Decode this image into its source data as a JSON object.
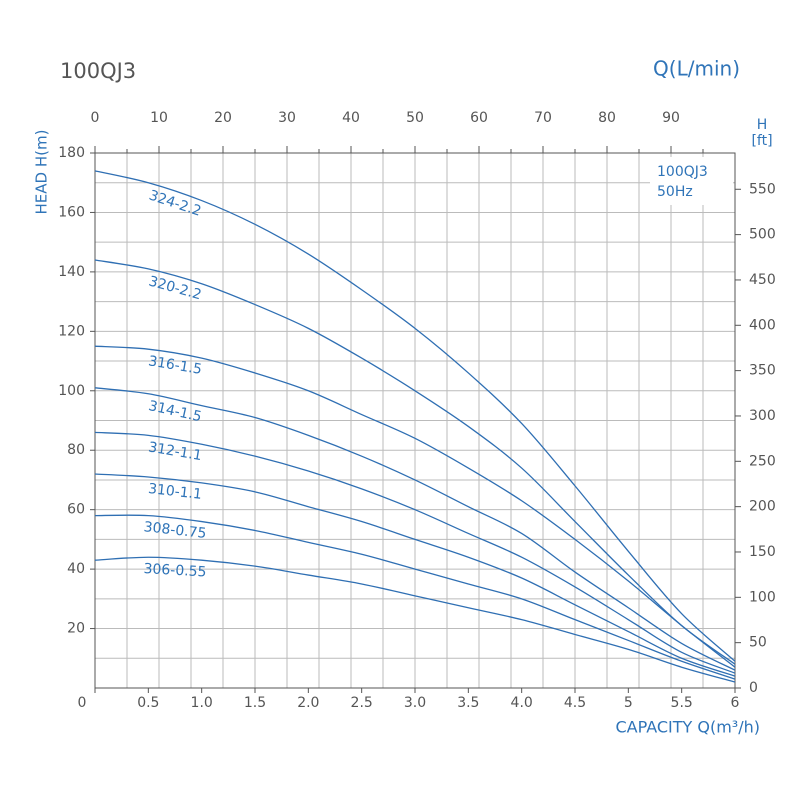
{
  "chart_data": {
    "type": "line",
    "title": "100QJ3",
    "x2_label": "Q(L/min)",
    "y_label": "HEAD H(m)",
    "y2_label": [
      "H",
      "[ft]"
    ],
    "x_label": "CAPACITY Q(m³/h)",
    "annotation": [
      "100QJ3",
      "50Hz"
    ],
    "x": [
      0,
      0.5,
      1,
      1.5,
      2,
      2.5,
      3,
      3.5,
      4,
      4.5,
      5,
      5.5,
      6
    ],
    "xlim": [
      0,
      6
    ],
    "xticks": [
      0,
      0.5,
      {
        "value": 1,
        "label": "1.0"
      },
      1.5,
      {
        "value": 2,
        "label": "2.0"
      },
      2.5,
      {
        "value": 3,
        "label": "3.0"
      },
      3.5,
      {
        "value": 4,
        "label": "4.0"
      },
      4.5,
      5,
      5.5,
      6
    ],
    "x2lim": [
      0,
      100
    ],
    "x2ticks": [
      0,
      10,
      20,
      30,
      40,
      50,
      60,
      70,
      80,
      90
    ],
    "x2minor": [
      5,
      15,
      25,
      35,
      45,
      55,
      65,
      75,
      85,
      95
    ],
    "ylim": [
      0,
      180
    ],
    "yticks": [
      20,
      40,
      60,
      80,
      100,
      120,
      140,
      160,
      180
    ],
    "yminor": [
      10,
      30,
      50,
      70,
      90,
      110,
      130,
      150,
      170
    ],
    "y2lim": [
      0,
      590
    ],
    "y2ticks": [
      0,
      50,
      100,
      150,
      200,
      250,
      300,
      350,
      400,
      450,
      500,
      550
    ],
    "grid": true,
    "color": "#2f6fb3",
    "series": [
      {
        "name": "324-2.2",
        "values": [
          174,
          170,
          164,
          156,
          146,
          134,
          121,
          106,
          89,
          68,
          46,
          25,
          9
        ]
      },
      {
        "name": "320-2.2",
        "values": [
          144,
          141,
          136,
          129,
          121,
          111,
          100,
          88,
          74,
          56,
          38,
          21,
          8
        ]
      },
      {
        "name": "316-1.5",
        "values": [
          115,
          114,
          111,
          106,
          100,
          92,
          84,
          74,
          63,
          50,
          36,
          21,
          7
        ]
      },
      {
        "name": "314-1.5",
        "values": [
          101,
          99,
          95,
          91,
          85,
          78,
          70,
          61,
          52,
          39,
          27,
          15,
          6
        ]
      },
      {
        "name": "312-1.1",
        "values": [
          86,
          85,
          82,
          78,
          73,
          67,
          60,
          52,
          44,
          34,
          23,
          12,
          5
        ]
      },
      {
        "name": "310-1.1",
        "values": [
          72,
          71,
          69,
          66,
          61,
          56,
          50,
          44,
          37,
          28,
          19,
          10,
          4
        ]
      },
      {
        "name": "308-0.75",
        "values": [
          58,
          58,
          56,
          53,
          49,
          45,
          40,
          35,
          30,
          23,
          16,
          9,
          3
        ]
      },
      {
        "name": "306-0.55",
        "values": [
          43,
          44,
          43,
          41,
          38,
          35,
          31,
          27,
          23,
          18,
          13,
          7,
          2
        ]
      }
    ]
  }
}
